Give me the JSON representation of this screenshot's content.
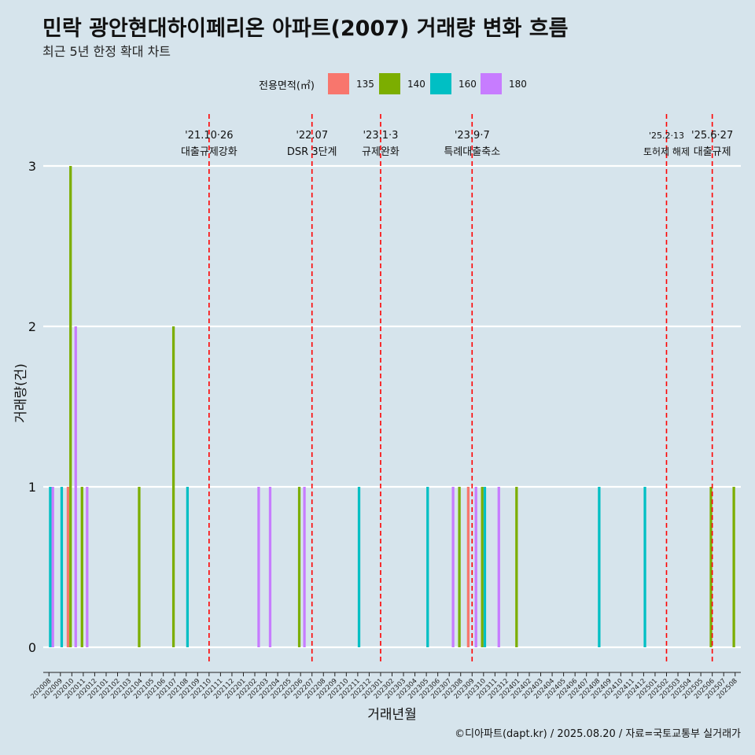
{
  "title": "민락 광안현대하이페리온 아파트(2007) 거래량 변화 흐름",
  "subtitle": "최근 5년 한정 확대 차트",
  "caption": "©디아파트(dapt.kr) / 2025.08.20 / 자료=국토교통부 실거래가",
  "legend": {
    "title": "전용면적(㎡)",
    "items": [
      {
        "label": "135",
        "color": "#f8766d"
      },
      {
        "label": "140",
        "color": "#7cae00"
      },
      {
        "label": "160",
        "color": "#00bfc4"
      },
      {
        "label": "180",
        "color": "#c77cff"
      }
    ]
  },
  "chart_data": {
    "type": "bar",
    "xlabel": "거래년월",
    "ylabel": "거래량(건)",
    "ylim": [
      0,
      3
    ],
    "yticks": [
      0,
      1,
      2,
      3
    ],
    "categories": [
      "202008",
      "202009",
      "202010",
      "202011",
      "202012",
      "202101",
      "202102",
      "202103",
      "202104",
      "202105",
      "202106",
      "202107",
      "202108",
      "202109",
      "202110",
      "202111",
      "202112",
      "202201",
      "202202",
      "202203",
      "202204",
      "202205",
      "202206",
      "202207",
      "202208",
      "202209",
      "202210",
      "202211",
      "202212",
      "202301",
      "202302",
      "202303",
      "202304",
      "202305",
      "202306",
      "202307",
      "202308",
      "202309",
      "202310",
      "202311",
      "202312",
      "202401",
      "202402",
      "202403",
      "202404",
      "202405",
      "202406",
      "202407",
      "202408",
      "202409",
      "202410",
      "202411",
      "202412",
      "202501",
      "202502",
      "202503",
      "202504",
      "202505",
      "202506",
      "202507",
      "202508"
    ],
    "series": [
      {
        "name": "135",
        "values": {
          "202010": 1,
          "202309": 1
        }
      },
      {
        "name": "140",
        "values": {
          "202010": 3,
          "202011": 1,
          "202104": 1,
          "202107": 2,
          "202206": 1,
          "202308": 1,
          "202310": 1,
          "202401": 1,
          "202506": 1,
          "202508": 1
        }
      },
      {
        "name": "160",
        "values": {
          "202008": 1,
          "202009": 1,
          "202108": 1,
          "202211": 1,
          "202305": 1,
          "202310": 1,
          "202408": 1,
          "202412": 1
        }
      },
      {
        "name": "180",
        "values": {
          "202008": 1,
          "202010": 2,
          "202011": 1,
          "202202": 1,
          "202203": 1,
          "202206": 1,
          "202307": 1,
          "202309": 1,
          "202311": 1
        }
      }
    ],
    "events": [
      {
        "x": "202110",
        "date": "'21.10·26",
        "label": "대출규제강화"
      },
      {
        "x": "202207",
        "date": "'22.07",
        "label": "DSR 3단계"
      },
      {
        "x": "202301",
        "date": "'23.1·3",
        "label": "규제완화"
      },
      {
        "x": "202309",
        "date": "'23.9·7",
        "label": "특례대출축소"
      },
      {
        "x": "202502",
        "date": "'25.2·13",
        "label": "토허제 해제"
      },
      {
        "x": "202506",
        "date": "'25.6·27",
        "label": "대출규제"
      }
    ]
  }
}
